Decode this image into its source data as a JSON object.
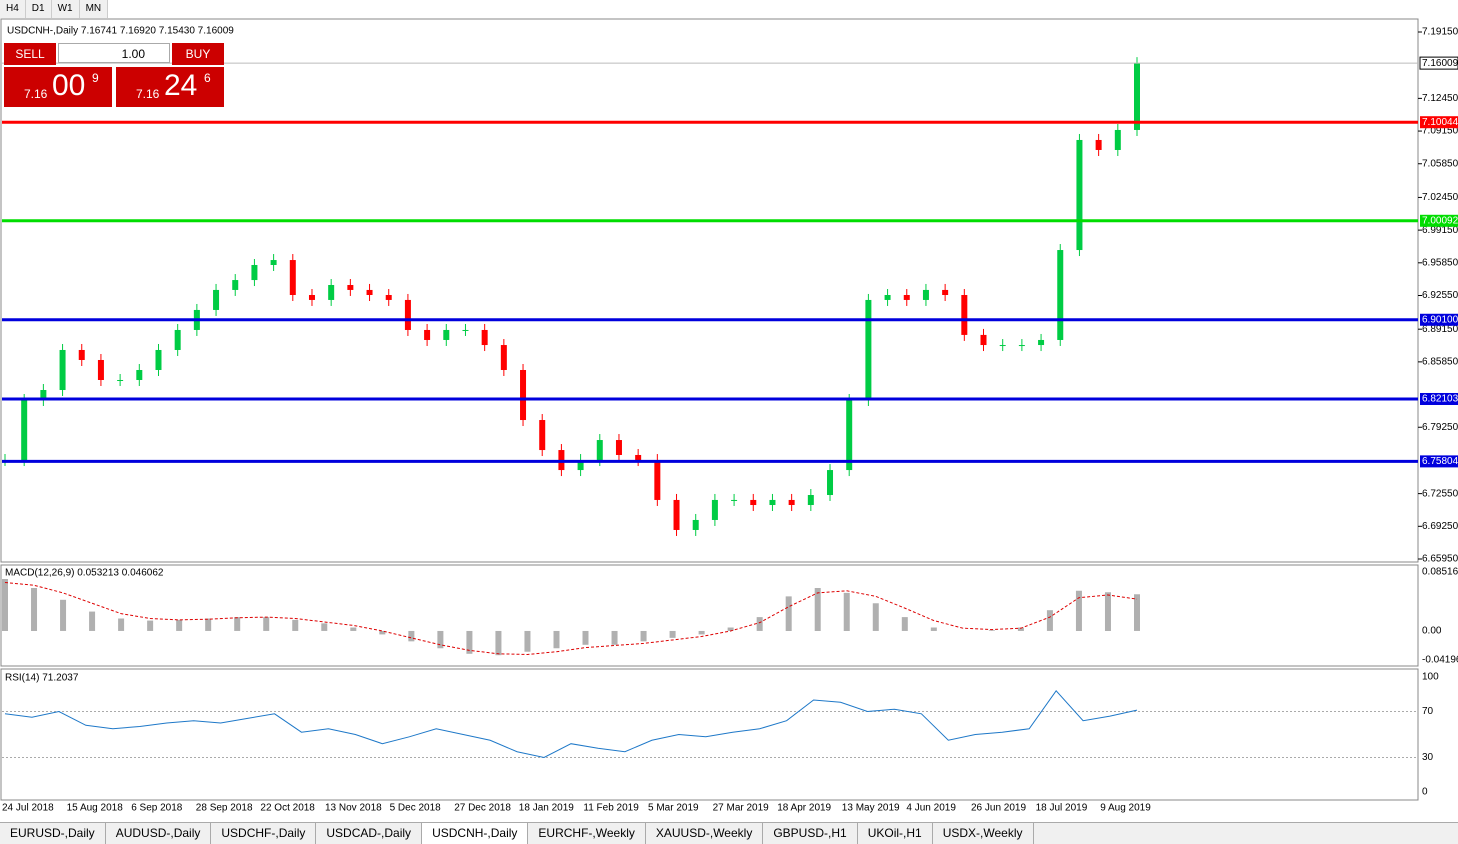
{
  "toolbar": {
    "timeframes": [
      "H4",
      "D1",
      "W1",
      "MN"
    ]
  },
  "trade_panel": {
    "sell": "SELL",
    "buy": "BUY",
    "lot": "1.00",
    "sell_price": {
      "prefix": "7.16",
      "big": "00",
      "small": "9"
    },
    "buy_price": {
      "prefix": "7.16",
      "big": "24",
      "small": "6"
    }
  },
  "chart": {
    "header": "USDCNH-,Daily  7.16741 7.16920 7.15430 7.16009",
    "ylim": [
      6.6595,
      7.1915
    ],
    "yticks": [
      {
        "value": 7.1915,
        "label": "7.19150"
      },
      {
        "value": 7.1245,
        "label": "7.12450"
      },
      {
        "value": 7.0915,
        "label": "7.09150"
      },
      {
        "value": 7.0585,
        "label": "7.05850"
      },
      {
        "value": 7.0245,
        "label": "7.02450"
      },
      {
        "value": 6.9915,
        "label": "6.99150"
      },
      {
        "value": 6.9585,
        "label": "6.95850"
      },
      {
        "value": 6.9255,
        "label": "6.92550"
      },
      {
        "value": 6.8915,
        "label": "6.89150"
      },
      {
        "value": 6.8585,
        "label": "6.85850"
      },
      {
        "value": 6.7925,
        "label": "6.79250"
      },
      {
        "value": 6.7255,
        "label": "6.72550"
      },
      {
        "value": 6.6925,
        "label": "6.69250"
      },
      {
        "value": 6.6595,
        "label": "6.65950"
      }
    ],
    "current": {
      "value": 7.16009,
      "label": "7.16009"
    },
    "levels": [
      {
        "value": 7.10044,
        "label": "7.10044",
        "color": "#ff0000"
      },
      {
        "value": 7.00092,
        "label": "7.00092",
        "color": "#00dd00"
      },
      {
        "value": 6.901,
        "label": "6.90100",
        "color": "#0000dd"
      },
      {
        "value": 6.82103,
        "label": "6.82103",
        "color": "#0000dd"
      },
      {
        "value": 6.75804,
        "label": "6.75804",
        "color": "#0000dd"
      }
    ],
    "closes": [
      6.7594,
      6.82,
      6.8301,
      6.8705,
      6.8604,
      6.8402,
      6.8402,
      6.8503,
      6.8705,
      6.8907,
      6.9109,
      6.9311,
      6.9411,
      6.9563,
      6.9613,
      6.926,
      6.921,
      6.9361,
      6.9311,
      6.926,
      6.921,
      6.8907,
      6.8806,
      6.8907,
      6.8907,
      6.8755,
      6.8503,
      6.7998,
      6.7695,
      6.7493,
      6.7594,
      6.7796,
      6.7645,
      6.7594,
      6.7191,
      6.6888,
      6.6989,
      6.7191,
      6.7191,
      6.714,
      6.7191,
      6.714,
      6.7241,
      6.7493,
      6.82,
      6.921,
      6.926,
      6.921,
      6.9311,
      6.926,
      6.8857,
      6.8755,
      6.8755,
      6.8755,
      6.8806,
      6.9714,
      7.0825,
      7.0724,
      7.0926,
      7.1601
    ],
    "up_color": "#00cc44",
    "down_color": "#ff0000",
    "dates": [
      "24 Jul 2018",
      "15 Aug 2018",
      "6 Sep 2018",
      "28 Sep 2018",
      "22 Oct 2018",
      "13 Nov 2018",
      "5 Dec 2018",
      "27 Dec 2018",
      "18 Jan 2019",
      "11 Feb 2019",
      "5 Mar 2019",
      "27 Mar 2019",
      "18 Apr 2019",
      "13 May 2019",
      "4 Jun 2019",
      "26 Jun 2019",
      "18 Jul 2019",
      "9 Aug 2019"
    ]
  },
  "macd": {
    "title": "MACD(12,26,9) 0.053213 0.046062",
    "ylim": [
      -0.04196,
      0.085164
    ],
    "yticks": [
      {
        "value": 0.085164,
        "label": "0.085164"
      },
      {
        "value": 0,
        "label": "0.00"
      },
      {
        "value": -0.04196,
        "label": "-0.04196"
      }
    ],
    "histogram": [
      0.075,
      0.062,
      0.045,
      0.028,
      0.018,
      0.015,
      0.016,
      0.018,
      0.02,
      0.02,
      0.016,
      0.011,
      0.005,
      -0.005,
      -0.015,
      -0.025,
      -0.033,
      -0.035,
      -0.03,
      -0.025,
      -0.02,
      -0.02,
      -0.015,
      -0.01,
      -0.005,
      0.005,
      0.02,
      0.05,
      0.062,
      0.055,
      0.04,
      0.02,
      0.005,
      0.0,
      0.001,
      0.005,
      0.03,
      0.058,
      0.056,
      0.053
    ],
    "signal": [
      0.07,
      0.066,
      0.055,
      0.04,
      0.025,
      0.018,
      0.016,
      0.017,
      0.019,
      0.02,
      0.018,
      0.013,
      0.008,
      0.0,
      -0.01,
      -0.02,
      -0.028,
      -0.033,
      -0.034,
      -0.03,
      -0.024,
      -0.021,
      -0.018,
      -0.013,
      -0.008,
      0.0,
      0.012,
      0.035,
      0.055,
      0.058,
      0.05,
      0.033,
      0.015,
      0.004,
      0.002,
      0.004,
      0.02,
      0.048,
      0.052,
      0.046
    ]
  },
  "rsi": {
    "title": "RSI(14) 71.2037",
    "ylim": [
      0,
      100
    ],
    "yticks": [
      100,
      70,
      30,
      0
    ],
    "values": [
      68,
      65,
      70,
      58,
      55,
      57,
      60,
      62,
      60,
      64,
      68,
      52,
      55,
      50,
      42,
      48,
      55,
      50,
      45,
      35,
      30,
      42,
      38,
      35,
      45,
      50,
      48,
      52,
      55,
      62,
      80,
      78,
      70,
      72,
      68,
      45,
      50,
      52,
      55,
      88,
      62,
      66,
      71.2
    ]
  },
  "tabs": [
    "EURUSD-,Daily",
    "AUDUSD-,Daily",
    "USDCHF-,Daily",
    "USDCAD-,Daily",
    "USDCNH-,Daily",
    "EURCHF-,Weekly",
    "XAUUSD-,Weekly",
    "GBPUSD-,H1",
    "UKOil-,H1",
    "USDX-,Weekly"
  ],
  "active_tab": 4
}
